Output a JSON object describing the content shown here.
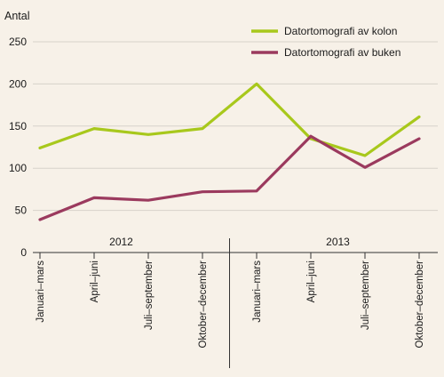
{
  "chart_data": {
    "type": "line",
    "ylabel": "Antal",
    "ylim": [
      0,
      250
    ],
    "yticks": [
      0,
      50,
      100,
      150,
      200,
      250
    ],
    "grid": true,
    "legend_position": "top-right",
    "categories": [
      "Januari–mars",
      "April–juni",
      "Juli–september",
      "Oktober–december",
      "Januari–mars",
      "April–juni",
      "Juli–september",
      "Oktober–december"
    ],
    "years": [
      {
        "label": "2012",
        "span": [
          0,
          3
        ]
      },
      {
        "label": "2013",
        "span": [
          4,
          7
        ]
      }
    ],
    "series": [
      {
        "name": "Datortomografi av kolon",
        "color": "#a8c81c",
        "values": [
          124,
          147,
          140,
          147,
          200,
          135,
          115,
          161
        ]
      },
      {
        "name": "Datortomografi av buken",
        "color": "#9b3a5e",
        "values": [
          39,
          65,
          62,
          72,
          73,
          138,
          101,
          135
        ]
      }
    ]
  }
}
